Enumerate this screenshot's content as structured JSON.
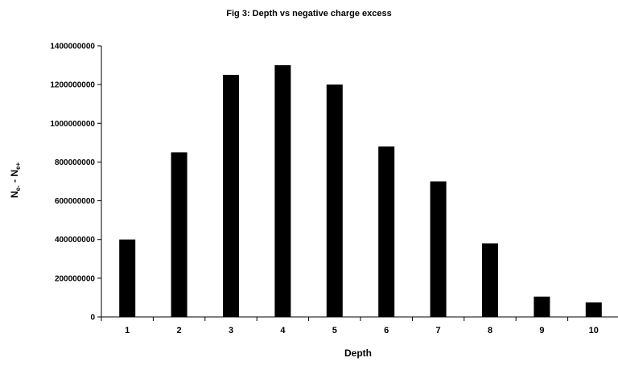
{
  "chart_data": {
    "type": "bar",
    "title": "Fig 3: Depth vs negative charge excess",
    "xlabel": "Depth",
    "ylabel": {
      "main_1": "N",
      "sub_1": "e-",
      "separator": " - ",
      "main_2": "N",
      "sub_2": "e+"
    },
    "categories": [
      "1",
      "2",
      "3",
      "4",
      "5",
      "6",
      "7",
      "8",
      "9",
      "10"
    ],
    "values": [
      400000000,
      850000000,
      1250000000,
      1300000000,
      1200000000,
      880000000,
      700000000,
      380000000,
      105000000,
      75000000
    ],
    "ylim": [
      0,
      1400000000
    ],
    "yticks": [
      "0",
      "200000000",
      "400000000",
      "600000000",
      "800000000",
      "1000000000",
      "1200000000",
      "1400000000"
    ],
    "grid": false,
    "legend": "none",
    "bar_color": "#000000"
  }
}
